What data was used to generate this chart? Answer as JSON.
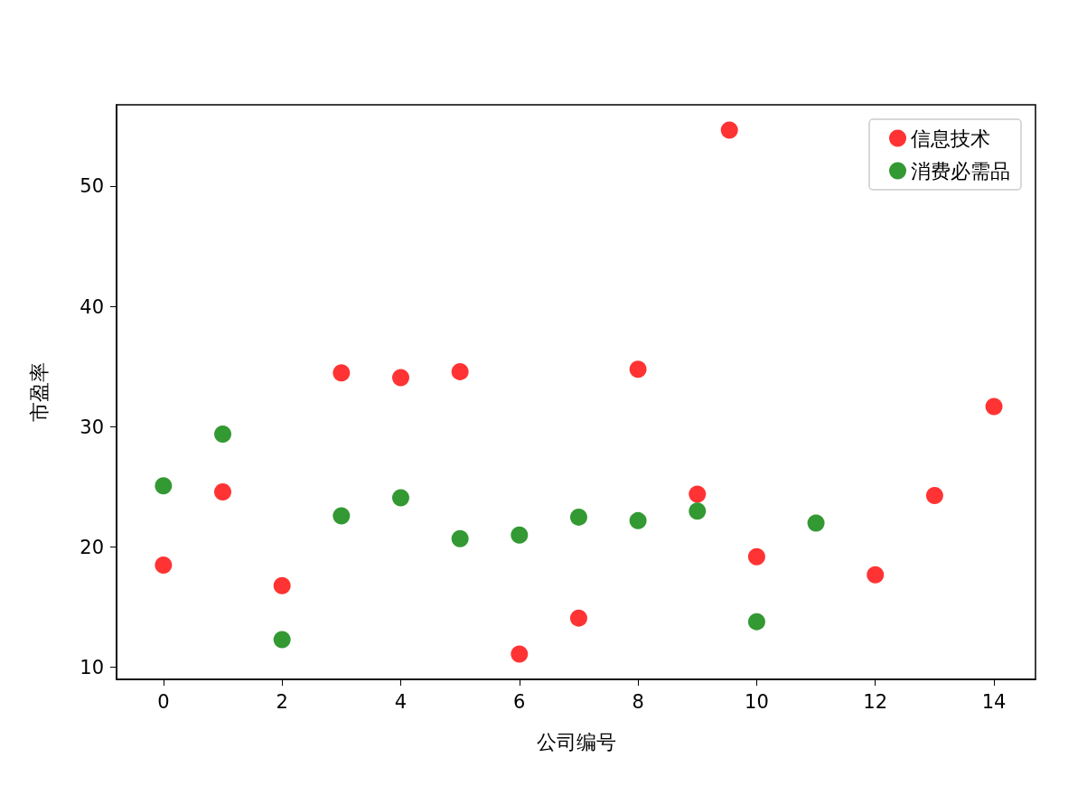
{
  "chart_data": {
    "type": "scatter",
    "xlabel": "公司编号",
    "ylabel": "市盈率",
    "xlim": [
      -0.79,
      14.7
    ],
    "xticks": [
      0,
      2,
      4,
      6,
      8,
      10,
      12,
      14
    ],
    "ylim": [
      9.0,
      56.8
    ],
    "yticks": [
      10,
      20,
      30,
      40,
      50
    ],
    "legend": "top right",
    "marker": "circle",
    "series": [
      {
        "name": "信息技术",
        "color": "#ff0000",
        "x": [
          0,
          1,
          2,
          3,
          4,
          5,
          6,
          7,
          8,
          9,
          9.54,
          10,
          12,
          13,
          14
        ],
        "values": [
          18.5,
          24.6,
          16.8,
          34.5,
          34.1,
          34.6,
          11.1,
          14.1,
          34.8,
          24.4,
          54.7,
          19.2,
          17.7,
          24.3,
          31.7
        ]
      },
      {
        "name": "消费必需品",
        "color": "#008000",
        "x": [
          0,
          1,
          2,
          3,
          4,
          5,
          6,
          7,
          8,
          9,
          10,
          11
        ],
        "values": [
          25.1,
          29.4,
          12.3,
          22.6,
          24.1,
          20.7,
          21.0,
          22.5,
          22.2,
          23.0,
          13.8,
          22.0
        ]
      }
    ]
  }
}
